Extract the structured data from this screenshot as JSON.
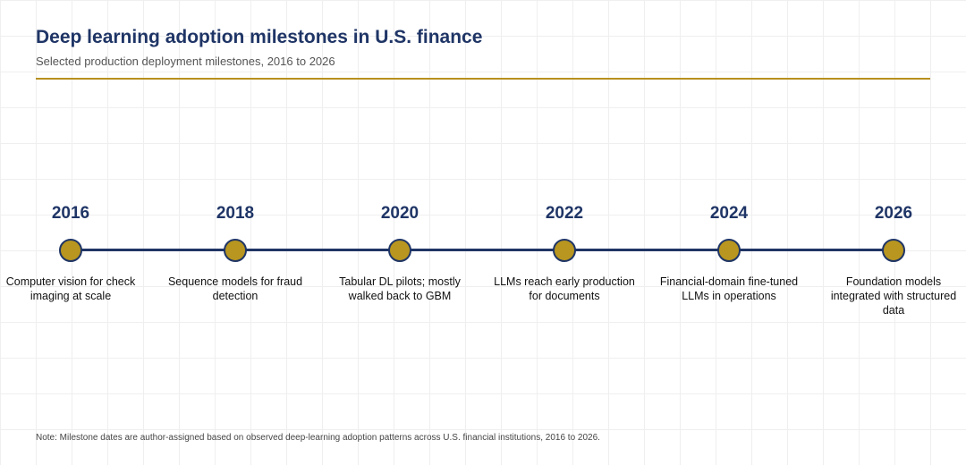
{
  "title": "Deep learning adoption milestones in U.S. finance",
  "subtitle": "Selected production deployment milestones, 2016 to 2026",
  "colors": {
    "title": "#1f3566",
    "accent_rule": "#b8901f",
    "dot_fill": "#b8961f",
    "dot_stroke": "#1f3566",
    "line": "#1f3566"
  },
  "milestones": [
    {
      "year": "2016",
      "description": "Computer vision for check imaging at scale"
    },
    {
      "year": "2018",
      "description": "Sequence models for fraud detection"
    },
    {
      "year": "2020",
      "description": "Tabular DL pilots; mostly walked back to GBM"
    },
    {
      "year": "2022",
      "description": "LLMs reach early production for documents"
    },
    {
      "year": "2024",
      "description": "Financial-domain fine-tuned LLMs in operations"
    },
    {
      "year": "2026",
      "description": "Foundation models integrated with structured data"
    }
  ],
  "note": "Note: Milestone dates are author-assigned based on observed deep-learning adoption patterns across U.S. financial institutions, 2016 to 2026."
}
